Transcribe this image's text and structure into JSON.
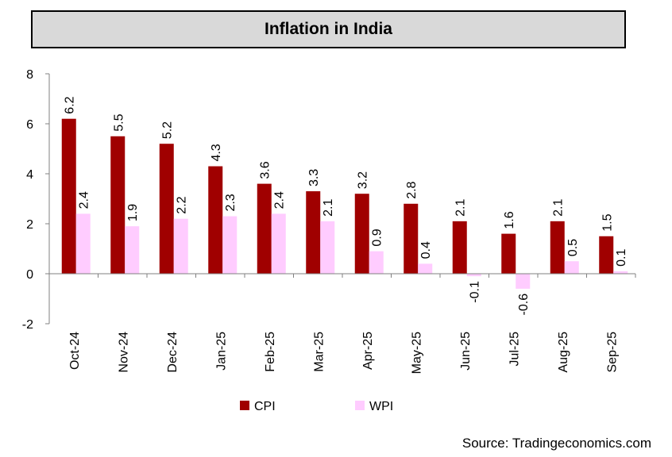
{
  "chart_data": {
    "type": "bar",
    "title": "Inflation in India",
    "categories": [
      "Oct-24",
      "Nov-24",
      "Dec-24",
      "Jan-25",
      "Feb-25",
      "Mar-25",
      "Apr-25",
      "May-25",
      "Jun-25",
      "Jul-25",
      "Aug-25",
      "Sep-25"
    ],
    "series": [
      {
        "name": "CPI",
        "color": "#a00000",
        "values": [
          6.2,
          5.5,
          5.2,
          4.3,
          3.6,
          3.3,
          3.2,
          2.8,
          2.1,
          1.6,
          2.1,
          1.5
        ]
      },
      {
        "name": "WPI",
        "color": "#ffccff",
        "values": [
          2.4,
          1.9,
          2.2,
          2.3,
          2.4,
          2.1,
          0.9,
          0.4,
          -0.1,
          -0.6,
          0.5,
          0.1
        ]
      }
    ],
    "ylim": [
      -2,
      8
    ],
    "yticks": [
      -2,
      0,
      2,
      4,
      6,
      8
    ],
    "xlabel": "",
    "ylabel": "",
    "legend_position": "bottom"
  },
  "source": "Source: Tradingeconomics.com"
}
